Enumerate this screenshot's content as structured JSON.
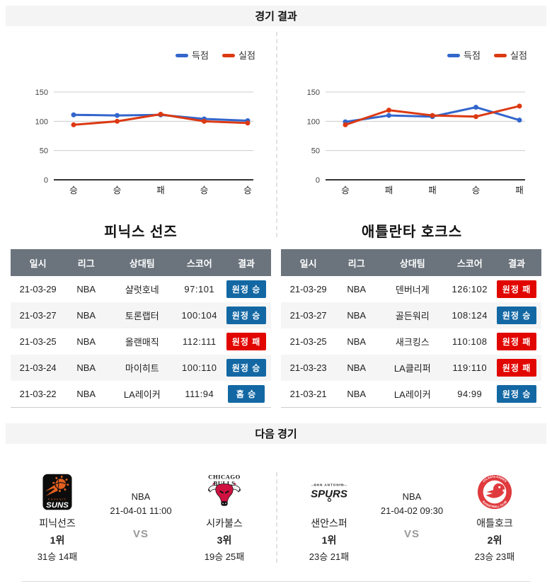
{
  "sections": {
    "results_title": "경기 결과",
    "next_title": "다음 경기"
  },
  "colors": {
    "scored_line": "#3366cc",
    "conceded_line": "#dc3912",
    "win_badge": "#1368a4",
    "loss_badge": "#e10600",
    "table_header_bg": "#6b747d",
    "section_bar_bg": "#f4f4f4"
  },
  "chart_data": [
    {
      "type": "line",
      "team": "피닉스 선즈",
      "x_labels": [
        "승",
        "승",
        "패",
        "승",
        "승"
      ],
      "y_ticks": [
        0,
        50,
        100,
        150
      ],
      "ylim": [
        0,
        150
      ],
      "legend_position": "top-right",
      "series": [
        {
          "name": "득점",
          "color": "#3366cc",
          "values": [
            111,
            110,
            111,
            104,
            101
          ]
        },
        {
          "name": "실점",
          "color": "#dc3912",
          "values": [
            94,
            100,
            112,
            100,
            97
          ]
        }
      ]
    },
    {
      "type": "line",
      "team": "애틀란타 호크스",
      "x_labels": [
        "승",
        "패",
        "패",
        "승",
        "패"
      ],
      "y_ticks": [
        0,
        50,
        100,
        150
      ],
      "ylim": [
        0,
        150
      ],
      "legend_position": "top-right",
      "series": [
        {
          "name": "득점",
          "color": "#3366cc",
          "values": [
            99,
            110,
            108,
            124,
            102
          ]
        },
        {
          "name": "실점",
          "color": "#dc3912",
          "values": [
            94,
            119,
            110,
            108,
            126
          ]
        }
      ]
    }
  ],
  "results_tables": {
    "headers": [
      "일시",
      "리그",
      "상대팀",
      "스코어",
      "결과"
    ],
    "teams": [
      {
        "name": "피닉스 선즈",
        "rows": [
          {
            "date": "21-03-29",
            "league": "NBA",
            "opponent": "샬럿호네",
            "score": "97:101",
            "result": "원정 승",
            "outcome": "win"
          },
          {
            "date": "21-03-27",
            "league": "NBA",
            "opponent": "토론랩터",
            "score": "100:104",
            "result": "원정 승",
            "outcome": "win"
          },
          {
            "date": "21-03-25",
            "league": "NBA",
            "opponent": "올랜매직",
            "score": "112:111",
            "result": "원정 패",
            "outcome": "loss"
          },
          {
            "date": "21-03-24",
            "league": "NBA",
            "opponent": "마이히트",
            "score": "100:110",
            "result": "원정 승",
            "outcome": "win"
          },
          {
            "date": "21-03-22",
            "league": "NBA",
            "opponent": "LA레이커",
            "score": "111:94",
            "result": "홈 승",
            "outcome": "win"
          }
        ]
      },
      {
        "name": "애틀란타 호크스",
        "rows": [
          {
            "date": "21-03-29",
            "league": "NBA",
            "opponent": "덴버너게",
            "score": "126:102",
            "result": "원정 패",
            "outcome": "loss"
          },
          {
            "date": "21-03-27",
            "league": "NBA",
            "opponent": "골든워리",
            "score": "108:124",
            "result": "원정 승",
            "outcome": "win"
          },
          {
            "date": "21-03-25",
            "league": "NBA",
            "opponent": "새크킹스",
            "score": "110:108",
            "result": "원정 패",
            "outcome": "loss"
          },
          {
            "date": "21-03-23",
            "league": "NBA",
            "opponent": "LA클리퍼",
            "score": "119:110",
            "result": "원정 패",
            "outcome": "loss"
          },
          {
            "date": "21-03-21",
            "league": "NBA",
            "opponent": "LA레이커",
            "score": "94:99",
            "result": "원정 승",
            "outcome": "win"
          }
        ]
      }
    ]
  },
  "next_games": [
    {
      "league": "NBA",
      "datetime": "21-04-01 11:00",
      "vs_label": "VS",
      "left": {
        "name": "피닉선즈",
        "rank": "1위",
        "record": "31승 14패",
        "logo": "suns"
      },
      "right": {
        "name": "시카불스",
        "rank": "3위",
        "record": "19승 25패",
        "logo": "bulls"
      }
    },
    {
      "league": "NBA",
      "datetime": "21-04-02 09:30",
      "vs_label": "VS",
      "left": {
        "name": "샌안스퍼",
        "rank": "1위",
        "record": "23승 21패",
        "logo": "spurs"
      },
      "right": {
        "name": "애틀호크",
        "rank": "2위",
        "record": "23승 23패",
        "logo": "hawks"
      }
    }
  ]
}
